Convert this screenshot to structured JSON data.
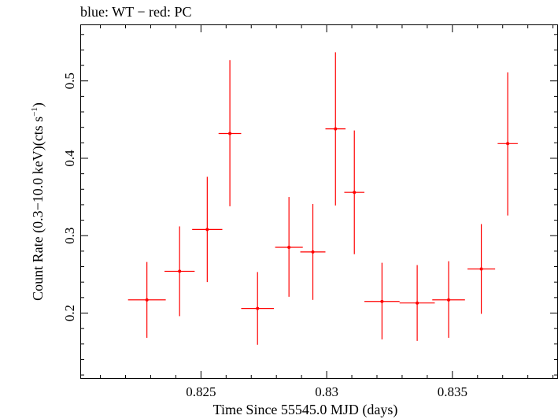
{
  "chart_data": {
    "type": "scatter",
    "title": "blue: WT − red: PC",
    "xlabel": "Time Since 55545.0 MJD (days)",
    "ylabel_main": "Count Rate (0.3−10.0 keV)(cts s",
    "ylabel_sup": "−1",
    "ylabel_close": ")",
    "xlim": [
      0.8202,
      0.8392
    ],
    "ylim": [
      0.115,
      0.573
    ],
    "x_ticks": [
      {
        "value": 0.825,
        "label": "0.825"
      },
      {
        "value": 0.83,
        "label": "0.83"
      },
      {
        "value": 0.835,
        "label": "0.835"
      }
    ],
    "y_ticks": [
      {
        "value": 0.2,
        "label": "0.2"
      },
      {
        "value": 0.3,
        "label": "0.3"
      },
      {
        "value": 0.4,
        "label": "0.4"
      },
      {
        "value": 0.5,
        "label": "0.5"
      }
    ],
    "grid": false,
    "series": [
      {
        "color": "#ff0000",
        "points": [
          {
            "x": 0.82285,
            "xerr": 0.00075,
            "y": 0.217,
            "yerr_lo": 0.049,
            "yerr_hi": 0.049
          },
          {
            "x": 0.82415,
            "xerr": 0.0006,
            "y": 0.254,
            "yerr_lo": 0.058,
            "yerr_hi": 0.058
          },
          {
            "x": 0.82525,
            "xerr": 0.0006,
            "y": 0.308,
            "yerr_lo": 0.068,
            "yerr_hi": 0.068
          },
          {
            "x": 0.82615,
            "xerr": 0.00045,
            "y": 0.432,
            "yerr_lo": 0.094,
            "yerr_hi": 0.095
          },
          {
            "x": 0.82725,
            "xerr": 0.00065,
            "y": 0.206,
            "yerr_lo": 0.047,
            "yerr_hi": 0.047
          },
          {
            "x": 0.8285,
            "xerr": 0.00055,
            "y": 0.285,
            "yerr_lo": 0.064,
            "yerr_hi": 0.065
          },
          {
            "x": 0.82945,
            "xerr": 0.0005,
            "y": 0.279,
            "yerr_lo": 0.062,
            "yerr_hi": 0.062
          },
          {
            "x": 0.83035,
            "xerr": 0.0004,
            "y": 0.438,
            "yerr_lo": 0.099,
            "yerr_hi": 0.099
          },
          {
            "x": 0.8311,
            "xerr": 0.0004,
            "y": 0.356,
            "yerr_lo": 0.08,
            "yerr_hi": 0.08
          },
          {
            "x": 0.8322,
            "xerr": 0.0007,
            "y": 0.215,
            "yerr_lo": 0.049,
            "yerr_hi": 0.05
          },
          {
            "x": 0.8336,
            "xerr": 0.0007,
            "y": 0.213,
            "yerr_lo": 0.049,
            "yerr_hi": 0.049
          },
          {
            "x": 0.83485,
            "xerr": 0.00065,
            "y": 0.217,
            "yerr_lo": 0.049,
            "yerr_hi": 0.05
          },
          {
            "x": 0.83615,
            "xerr": 0.00055,
            "y": 0.257,
            "yerr_lo": 0.058,
            "yerr_hi": 0.058
          },
          {
            "x": 0.8372,
            "xerr": 0.0004,
            "y": 0.419,
            "yerr_lo": 0.093,
            "yerr_hi": 0.092
          }
        ]
      }
    ]
  }
}
